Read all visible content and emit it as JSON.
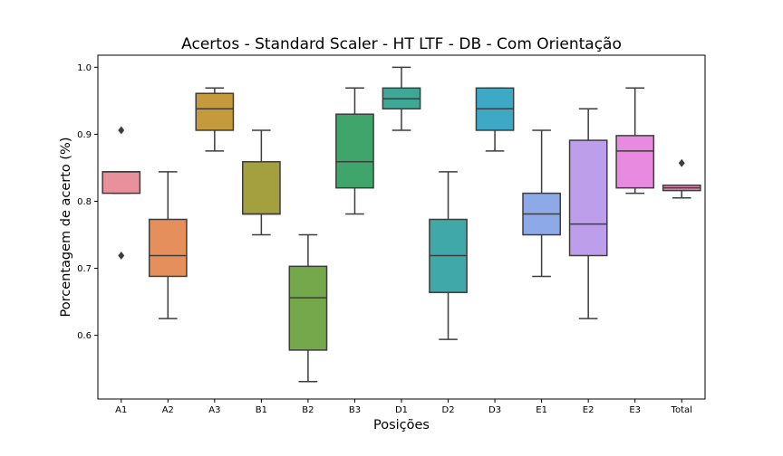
{
  "chart_data": {
    "type": "box",
    "title": "Acertos - Standard Scaler - HT LTF - DB - Com Orientação",
    "xlabel": "Posições",
    "ylabel": "Porcentagem de acerto (%)",
    "ylim": [
      0.505,
      1.018
    ],
    "yticks": [
      0.6,
      0.7,
      0.8,
      0.9,
      1.0
    ],
    "ytick_labels": [
      "0.6",
      "0.7",
      "0.8",
      "0.9",
      "1.0"
    ],
    "grid": false,
    "categories": [
      "A1",
      "A2",
      "A3",
      "B1",
      "B2",
      "B3",
      "D1",
      "D2",
      "D3",
      "E1",
      "E2",
      "E3",
      "Total"
    ],
    "boxes": [
      {
        "label": "A1",
        "whislo": 0.812,
        "q1": 0.812,
        "med": 0.844,
        "q3": 0.844,
        "whishi": 0.844,
        "fliers": [
          0.906,
          0.719
        ],
        "color": "#e8909c"
      },
      {
        "label": "A2",
        "whislo": 0.625,
        "q1": 0.688,
        "med": 0.719,
        "q3": 0.773,
        "whishi": 0.844,
        "fliers": [],
        "color": "#e48f5c"
      },
      {
        "label": "A3",
        "whislo": 0.875,
        "q1": 0.906,
        "med": 0.938,
        "q3": 0.961,
        "whishi": 0.969,
        "fliers": [],
        "color": "#c49a3d"
      },
      {
        "label": "B1",
        "whislo": 0.75,
        "q1": 0.781,
        "med": 0.781,
        "q3": 0.859,
        "whishi": 0.906,
        "fliers": [],
        "color": "#a49f3f"
      },
      {
        "label": "B2",
        "whislo": 0.531,
        "q1": 0.578,
        "med": 0.656,
        "q3": 0.703,
        "whishi": 0.75,
        "fliers": [],
        "color": "#74a84a"
      },
      {
        "label": "B3",
        "whislo": 0.781,
        "q1": 0.82,
        "med": 0.859,
        "q3": 0.93,
        "whishi": 0.969,
        "fliers": [],
        "color": "#3fa56a"
      },
      {
        "label": "D1",
        "whislo": 0.906,
        "q1": 0.938,
        "med": 0.953,
        "q3": 0.969,
        "whishi": 1.0,
        "fliers": [],
        "color": "#3ea896"
      },
      {
        "label": "D2",
        "whislo": 0.594,
        "q1": 0.664,
        "med": 0.719,
        "q3": 0.773,
        "whishi": 0.844,
        "fliers": [],
        "color": "#41a8aa"
      },
      {
        "label": "D3",
        "whislo": 0.875,
        "q1": 0.906,
        "med": 0.938,
        "q3": 0.969,
        "whishi": 0.969,
        "fliers": [],
        "color": "#3ea9c6"
      },
      {
        "label": "E1",
        "whislo": 0.688,
        "q1": 0.75,
        "med": 0.781,
        "q3": 0.812,
        "whishi": 0.906,
        "fliers": [],
        "color": "#8ea9e8"
      },
      {
        "label": "E2",
        "whislo": 0.625,
        "q1": 0.719,
        "med": 0.766,
        "q3": 0.891,
        "whishi": 0.938,
        "fliers": [],
        "color": "#bd9eea"
      },
      {
        "label": "E3",
        "whislo": 0.812,
        "q1": 0.82,
        "med": 0.875,
        "q3": 0.898,
        "whishi": 0.969,
        "fliers": [],
        "color": "#e88be0"
      },
      {
        "label": "Total",
        "whislo": 0.805,
        "q1": 0.816,
        "med": 0.82,
        "q3": 0.824,
        "whishi": 0.824,
        "fliers": [
          0.857
        ],
        "color": "#ee82b8"
      }
    ]
  }
}
